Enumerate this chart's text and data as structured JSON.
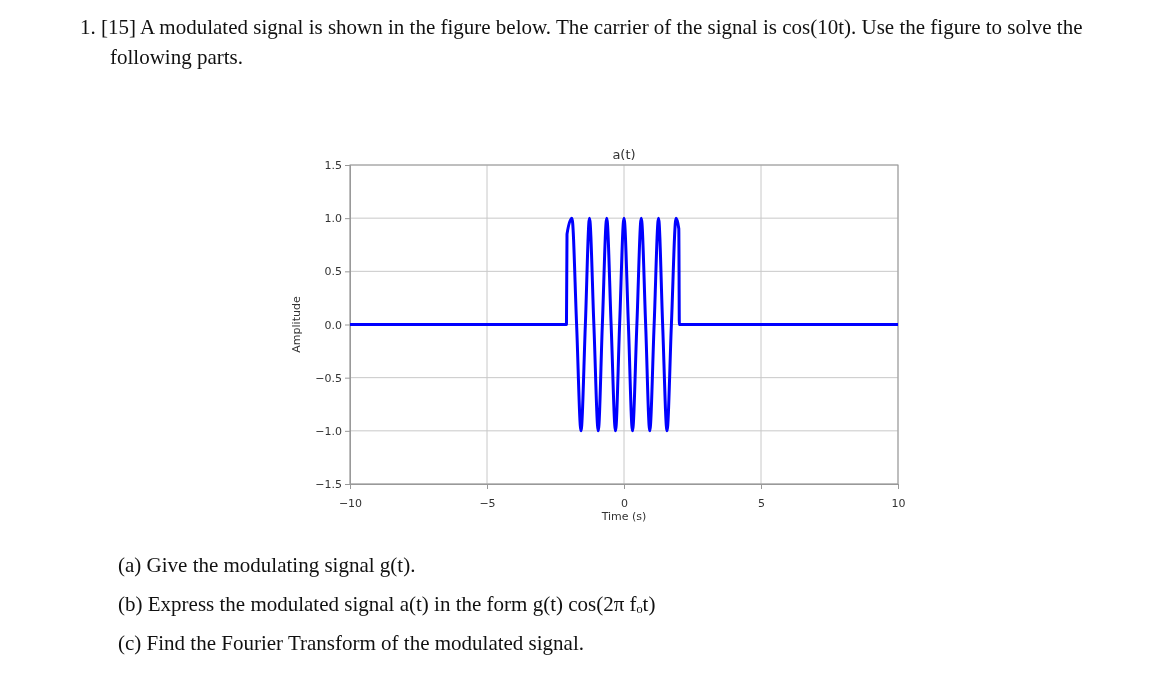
{
  "chart_data": {
    "type": "line",
    "title": "a(t)",
    "xlabel": "Time (s)",
    "ylabel": "Amplitude",
    "annotations": [
      "1. [15] A modulated signal is shown in the figure below. The carrier of the signal is cos(10t). Use the figure to solve the following parts.",
      "(a) Give the modulating signal g(t).",
      "(b) Express the modulated signal a(t) in the form g(t) cos(2π fₒt)",
      "(c) Find the Fourier Transform of the modulated signal."
    ],
    "xlim": [
      -10,
      10
    ],
    "xticks": [
      {
        "value": -10,
        "label": "−10"
      },
      {
        "value": -5,
        "label": "−5"
      },
      0,
      5,
      10
    ],
    "ylim": [
      -1.5,
      1.5
    ],
    "yticks": [
      {
        "value": -1.5,
        "label": "−1.5"
      },
      {
        "value": -1,
        "label": "−1.0"
      },
      {
        "value": -0.5,
        "label": "−0.5"
      },
      {
        "value": 0,
        "label": "0.0"
      },
      {
        "value": 0.5,
        "label": "0.5"
      },
      {
        "value": 1,
        "label": "1.0"
      },
      {
        "value": 1.5,
        "label": "1.5"
      }
    ],
    "grid": true,
    "marker": "none",
    "line_style": "solid",
    "series": [
      {
        "color": "#0000ff",
        "x": [
          -10,
          -2.1,
          -2.08,
          -1.9,
          -1.73,
          -1.57,
          -1.41,
          -1.26,
          -1.1,
          -0.94,
          -0.79,
          -0.63,
          -0.47,
          -0.31,
          -0.16,
          0,
          0.16,
          0.31,
          0.47,
          0.63,
          0.79,
          0.94,
          1.1,
          1.26,
          1.41,
          1.57,
          1.73,
          1.9,
          2.0,
          2.02,
          10
        ],
        "values": [
          0,
          0,
          0.85,
          1,
          0,
          -1,
          0,
          1,
          0,
          -1,
          0,
          1,
          0,
          -1,
          0,
          1,
          0,
          -1,
          0,
          1,
          0,
          -1,
          0,
          1,
          0,
          -1,
          0,
          1,
          0.9,
          0,
          0
        ]
      }
    ]
  }
}
